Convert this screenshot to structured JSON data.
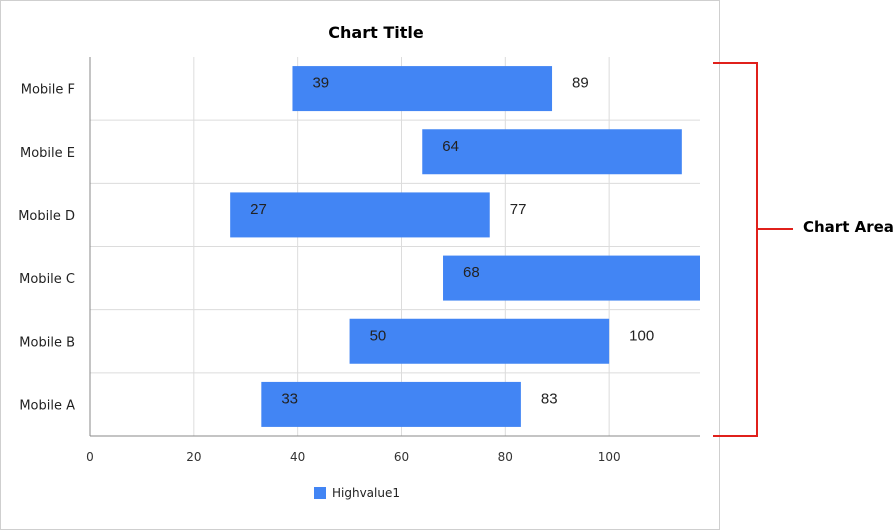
{
  "chart_data": {
    "type": "bar",
    "orientation": "horizontal",
    "range_bars": true,
    "title": "Chart Title",
    "categories": [
      "Mobile A",
      "Mobile B",
      "Mobile C",
      "Mobile D",
      "Mobile E",
      "Mobile F"
    ],
    "series": [
      {
        "name": "Highvalue1",
        "color": "#4285f4",
        "low": [
          33,
          50,
          68,
          27,
          64,
          39
        ],
        "high": [
          83,
          100,
          118,
          77,
          114,
          89
        ],
        "low_labels": [
          "33",
          "50",
          "68",
          "27",
          "64",
          "39"
        ],
        "high_labels": [
          "83",
          "100",
          "",
          "77",
          "",
          "89"
        ]
      }
    ],
    "x_ticks": [
      "0",
      "20",
      "40",
      "60",
      "80",
      "100"
    ],
    "xlim": [
      0,
      117.5
    ],
    "grid": true,
    "legend": "bottom"
  },
  "annotation": {
    "label": "Chart Area",
    "color": "#e0201b"
  }
}
